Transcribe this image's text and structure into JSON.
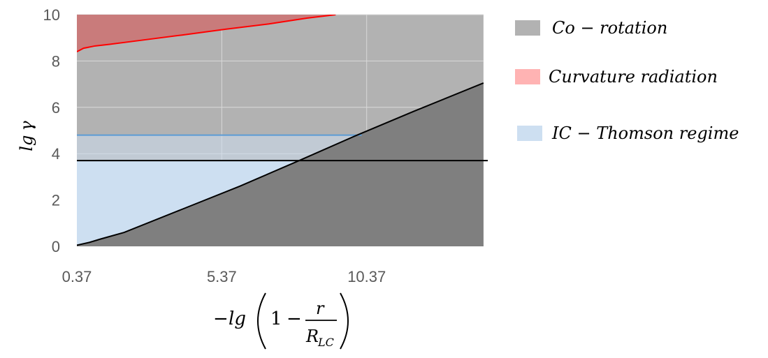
{
  "chart_data": {
    "type": "area",
    "xlabel": "−lg(1 − r/R_LC)",
    "ylabel": "lg γ",
    "xlim": [
      0.37,
      14.5
    ],
    "ylim": [
      0,
      10
    ],
    "x_ticks": [
      "0.37",
      "5.37",
      "10.37"
    ],
    "y_ticks": [
      "0",
      "2",
      "4",
      "6",
      "8",
      "10"
    ],
    "grid": true,
    "legend_position": "right",
    "colors": {
      "co_rotation_fill": "#b2b2b2",
      "co_rotation_dark": "#7f7f7f",
      "curvature_fill": "#c97b7b",
      "curvature_line": "#ff0000",
      "ic_fill": "#cddff1",
      "ic_line": "#5b9bd5",
      "black_line": "#000000"
    },
    "series": [
      {
        "name": "Co − rotation",
        "key": "co_rotation",
        "x": [
          0.37,
          14.4
        ],
        "y": [
          10,
          10
        ]
      },
      {
        "name": "Curvature radiation",
        "key": "curvature",
        "x": [
          0.37,
          0.6,
          1.0,
          1.5,
          2.5,
          4.0,
          5.5,
          7.0,
          8.3,
          9.3
        ],
        "y": [
          8.4,
          8.55,
          8.65,
          8.72,
          8.88,
          9.12,
          9.37,
          9.6,
          9.85,
          10.0
        ]
      },
      {
        "name": "IC − Thomson regime",
        "key": "ic",
        "x": [
          0.37,
          10.2
        ],
        "y": [
          4.8,
          4.8
        ]
      },
      {
        "name": "",
        "key": "boundary",
        "x": [
          0.37,
          0.8,
          1.2,
          2.0,
          4.0,
          6.0,
          8.0,
          10.0,
          12.0,
          14.4
        ],
        "y": [
          0.05,
          0.17,
          0.32,
          0.6,
          1.6,
          2.6,
          3.68,
          4.78,
          5.83,
          7.05
        ]
      },
      {
        "name": "",
        "key": "horizontal",
        "x": [
          0.37,
          14.4
        ],
        "y": [
          3.7,
          3.7
        ]
      }
    ]
  },
  "legend": {
    "items": [
      {
        "label": "Co − rotation",
        "color": "#b2b2b2"
      },
      {
        "label": "Curvature radiation",
        "color": "#ffb3b3"
      },
      {
        "label": "IC − Thomson regime",
        "color": "#cddff1"
      }
    ]
  },
  "labels": {
    "y_main": "lg",
    "y_gamma": "γ",
    "x_minus": "−",
    "x_lg": "lg",
    "x_one": "1",
    "x_minus2": "−",
    "x_r": "r",
    "x_R": "R",
    "x_sub": "LC"
  }
}
